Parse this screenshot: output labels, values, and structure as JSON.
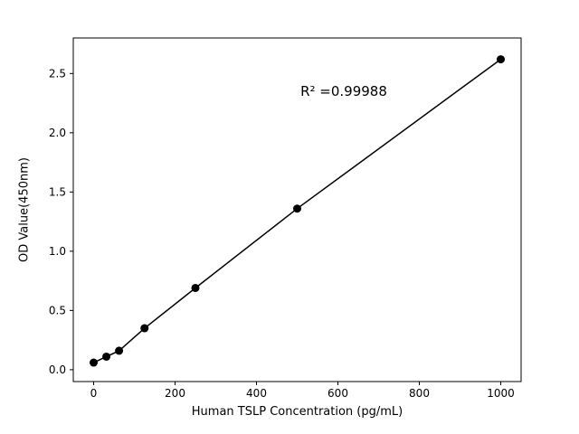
{
  "figure": {
    "background": "#ffffff",
    "axis_color": "#000000"
  },
  "chart_data": {
    "type": "scatter",
    "title": "",
    "xlabel": "Human TSLP Concentration (pg/mL)",
    "ylabel": "OD Value(450nm)",
    "x": [
      0,
      31.25,
      62.5,
      125,
      250,
      500,
      1000
    ],
    "y": [
      0.06,
      0.11,
      0.16,
      0.35,
      0.69,
      1.36,
      2.62
    ],
    "series_name": "standard-curve",
    "marker": "circle",
    "marker_color": "#000000",
    "line": true,
    "line_color": "#000000",
    "xlim": [
      -50,
      1050
    ],
    "ylim": [
      -0.1,
      2.8
    ],
    "xticks": [
      "0",
      "200",
      "400",
      "600",
      "800",
      "1000"
    ],
    "yticks": [
      "0.0",
      "0.5",
      "1.0",
      "1.5",
      "2.0",
      "2.5"
    ],
    "annotation": "R² =0.99988",
    "grid": false,
    "legend": "none"
  }
}
